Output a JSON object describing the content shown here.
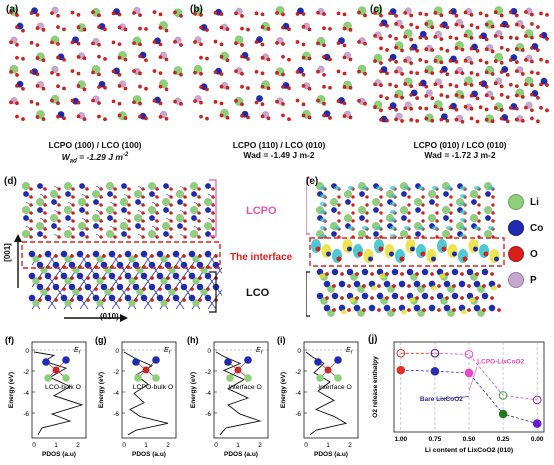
{
  "panels": {
    "a": {
      "label": "(a)",
      "title": "LCPO (100) / LCO (100)",
      "wad_prefix": "W",
      "wad_sub": "ad",
      "wad_value": " = -1.29 J m",
      "wad_exp": "-2"
    },
    "b": {
      "label": "(b)",
      "title": "LCPO (110) / LCO (010)",
      "wad": "Wad = -1.49 J m-2"
    },
    "c": {
      "label": "(c)",
      "title": "LCPO (010) / LCO (010)",
      "wad": "Wad = -1.72 J m-2"
    },
    "d": {
      "label": "(d)",
      "axis_up": "[001]",
      "axis_right": "(010)"
    },
    "e": {
      "label": "(e)"
    },
    "region_labels": {
      "lcpo": "LCPO",
      "interface": "The interface",
      "lco": "LCO"
    },
    "legend": [
      {
        "name": "Li",
        "color": "#8ed07a"
      },
      {
        "name": "Co",
        "color": "#1f2bb0"
      },
      {
        "name": "O",
        "color": "#d8201b"
      },
      {
        "name": "P",
        "color": "#c9a6cf"
      }
    ],
    "pdos": [
      {
        "label": "(f)",
        "name": "LCO-bulk O",
        "ef": "E",
        "ef_sub": "f"
      },
      {
        "label": "(g)",
        "name": "LCPO-bulk O",
        "ef": "E",
        "ef_sub": "f"
      },
      {
        "label": "(h)",
        "name": "Interface O",
        "ef": "E",
        "ef_sub": "f"
      },
      {
        "label": "(i)",
        "name": "Interface O",
        "ef": "E",
        "ef_sub": "f"
      }
    ],
    "pdos_axes": {
      "ylabel": "Energy (eV)",
      "xlabel": "PDOS (a.u)",
      "yticks": [
        "0",
        "-2",
        "-4",
        "-6"
      ],
      "xticks": [
        "0",
        "1",
        "2"
      ]
    },
    "j": {
      "label": "(j)"
    }
  },
  "chart_data": {
    "type": "line",
    "title": "",
    "xlabel": "Li content of LixCoO2 (010)",
    "ylabel": "O2 release enthalpy",
    "xlim": [
      1.05,
      -0.05
    ],
    "x_ticks": [
      "1.00",
      "0.75",
      "0.50",
      "0.25",
      "0.00"
    ],
    "series": [
      {
        "name": "LCPO-LixCoO2",
        "color": "#ee4aa6",
        "marker": "star",
        "x": [
          0.5
        ],
        "y": [
          0.68
        ]
      },
      {
        "name": "Bare LixCoO2",
        "color": "#2a2aa0",
        "marker": "mixed",
        "x": [
          0.5
        ],
        "y": [
          0.58
        ]
      }
    ],
    "series_markers": [
      {
        "color": "#e0302a",
        "filled": false,
        "x": [
          1.0,
          0.75
        ],
        "y": [
          1.35,
          1.35
        ]
      },
      {
        "color": "#e0302a",
        "filled": true,
        "x": [
          1.0
        ],
        "y": [
          1.05
        ]
      },
      {
        "color": "#2d2db0",
        "filled": false,
        "x": [
          0.75
        ],
        "y": [
          1.35
        ]
      },
      {
        "color": "#2d2db0",
        "filled": true,
        "x": [
          0.75
        ],
        "y": [
          1.03
        ]
      },
      {
        "color": "#e54bd0",
        "filled": false,
        "x": [
          0.5
        ],
        "y": [
          1.33
        ]
      },
      {
        "color": "#e54bd0",
        "filled": true,
        "x": [
          0.5
        ],
        "y": [
          1.0
        ]
      },
      {
        "color": "#3faa3f",
        "filled": false,
        "x": [
          0.25
        ],
        "y": [
          0.6
        ]
      },
      {
        "color": "#1e7a1e",
        "filled": true,
        "x": [
          0.25
        ],
        "y": [
          0.27
        ]
      },
      {
        "color": "#8a2ad6",
        "filled": false,
        "x": [
          0.0
        ],
        "y": [
          0.52
        ]
      },
      {
        "color": "#6a1ad0",
        "filled": true,
        "x": [
          0.0
        ],
        "y": [
          0.1
        ]
      }
    ]
  }
}
